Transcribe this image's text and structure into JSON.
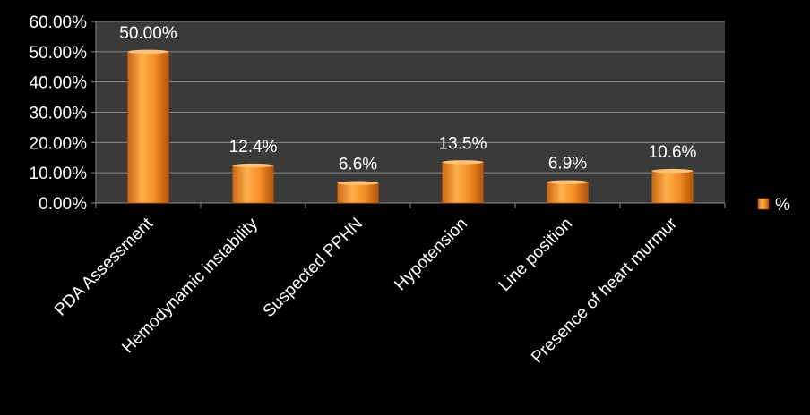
{
  "chart_data": {
    "type": "bar",
    "categories": [
      "PDA Assessment",
      "Hemodynamic instability",
      "Suspected PPHN",
      "Hypotension",
      "Line position",
      "Presence of heart murmur"
    ],
    "series": [
      {
        "name": "%",
        "values": [
          50.0,
          12.4,
          6.6,
          13.5,
          6.9,
          10.6
        ]
      }
    ],
    "data_labels": [
      "50.00%",
      "12.4%",
      "6.6%",
      "13.5%",
      "6.9%",
      "10.6%"
    ],
    "y_ticks": [
      "0.00%",
      "10.00%",
      "20.00%",
      "30.00%",
      "40.00%",
      "50.00%",
      "60.00%"
    ],
    "ylim": [
      0,
      60
    ],
    "grid": true,
    "legend": {
      "position": "right"
    },
    "colors": {
      "background": "#000000",
      "plot_area": "#3a3a3a",
      "bar": "#f0902a",
      "grid": "#8a8a8a",
      "text": "#ffffff"
    }
  }
}
